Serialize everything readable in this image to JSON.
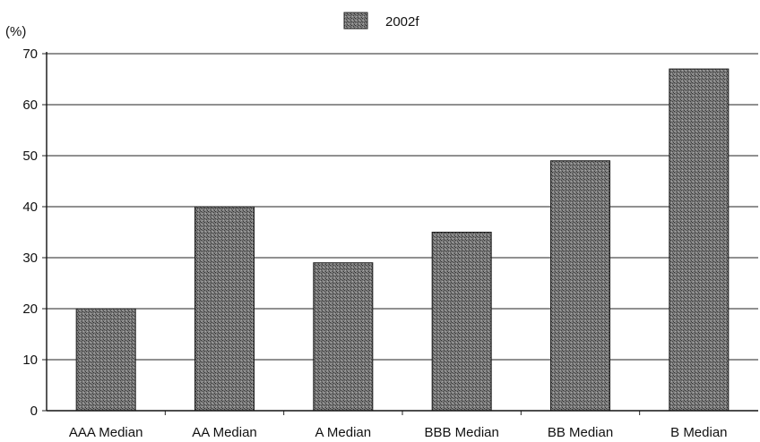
{
  "chart_data": {
    "type": "bar",
    "y_unit_label": "(%)",
    "categories": [
      "AAA Median",
      "AA Median",
      "A Median",
      "BBB Median",
      "BB Median",
      "B Median"
    ],
    "series": [
      {
        "name": "2002f",
        "values": [
          20,
          40,
          29,
          35,
          49,
          67
        ]
      }
    ],
    "yticks": [
      0,
      10,
      20,
      30,
      40,
      50,
      60,
      70
    ],
    "ylim": [
      0,
      70
    ],
    "grid": true,
    "legend_position": "top-center",
    "bar_color": "#6b6b6b"
  }
}
